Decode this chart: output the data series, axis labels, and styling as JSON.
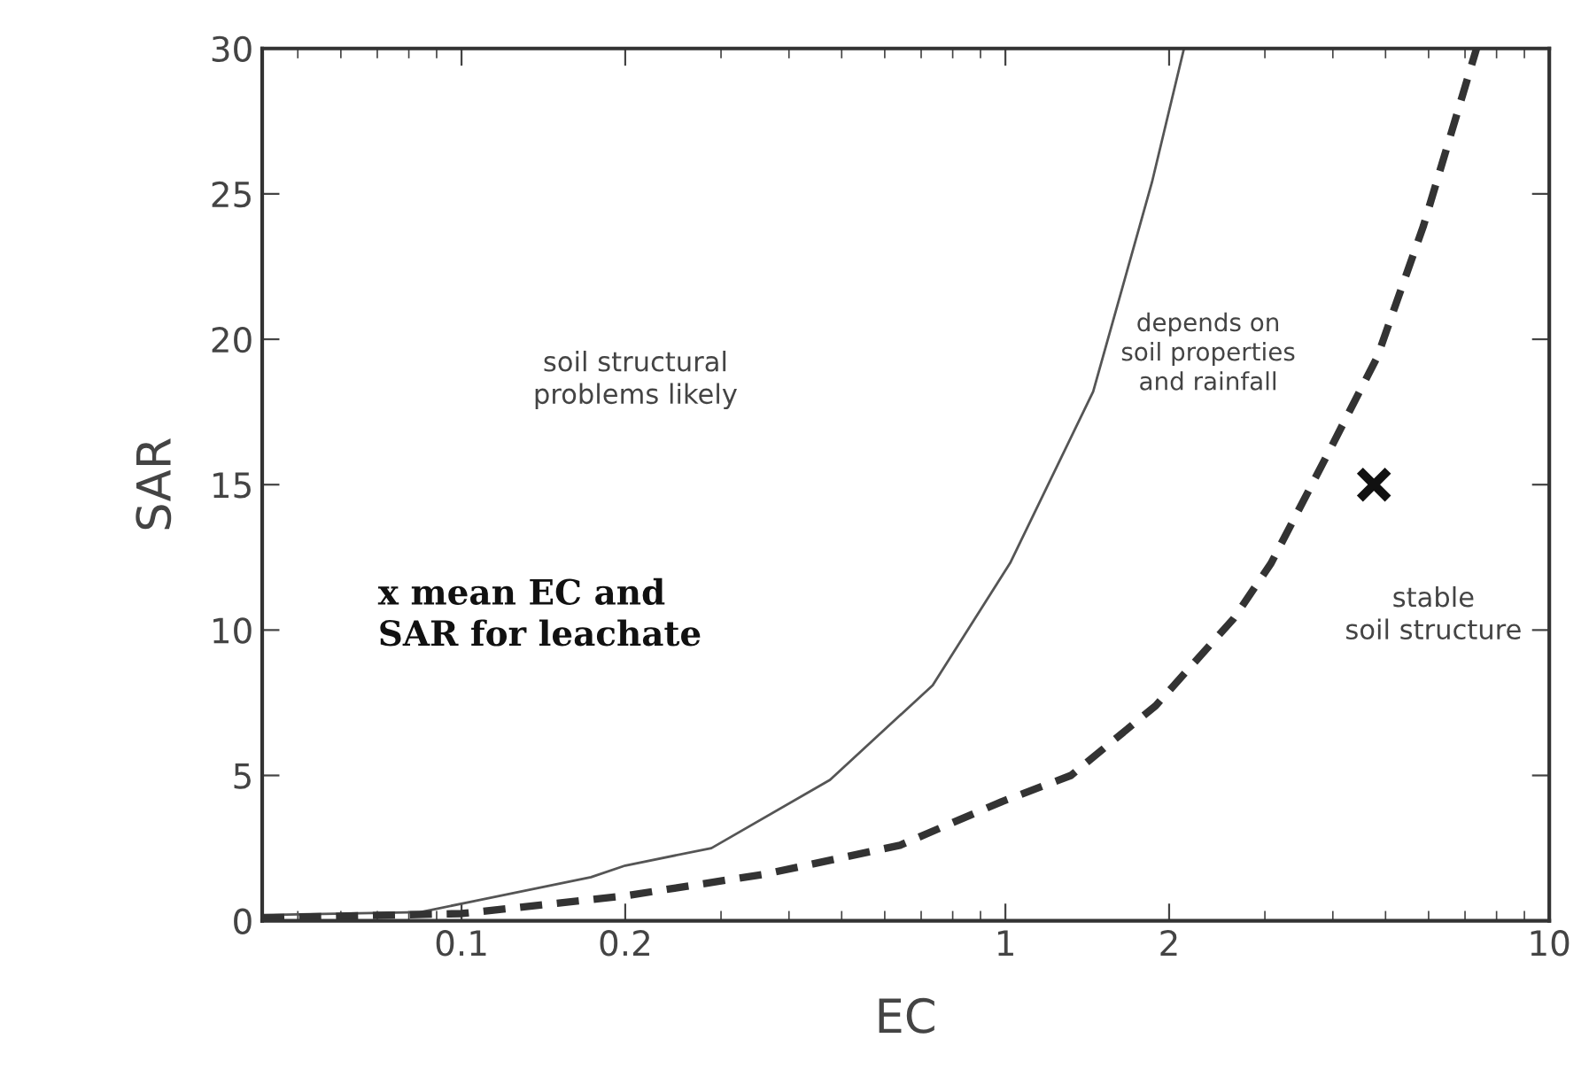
{
  "chart_data": {
    "type": "line",
    "xlabel": "EC",
    "ylabel": "SAR",
    "log": "x",
    "xlim": [
      0.043,
      10
    ],
    "ylim": [
      0,
      30
    ],
    "xticks": [
      0.1,
      0.2,
      1,
      2,
      10
    ],
    "yticks": [
      0,
      5,
      10,
      15,
      20,
      25,
      30
    ],
    "grid": false,
    "legend": false,
    "marker": "none",
    "series": [
      {
        "color": "#555555",
        "line_style": "solid",
        "x": [
          0.043,
          0.084,
          0.173,
          0.2,
          0.288,
          0.476,
          0.735,
          1.02,
          1.45,
          1.86,
          2.13
        ],
        "values": [
          0.2,
          0.3,
          1.5,
          1.9,
          2.5,
          4.85,
          8.1,
          12.3,
          18.2,
          25.4,
          30
        ]
      },
      {
        "color": "#333333",
        "line_style": "dashed",
        "x": [
          0.043,
          0.1,
          0.2,
          0.36,
          0.64,
          0.985,
          1.32,
          1.89,
          2.63,
          3.08,
          3.95,
          4.83,
          5.87,
          7.35
        ],
        "values": [
          0.1,
          0.25,
          0.86,
          1.6,
          2.6,
          4.1,
          5.0,
          7.4,
          10.4,
          12.3,
          16.2,
          19.4,
          23.9,
          30
        ]
      },
      {
        "type": "scatter",
        "color": "#111111",
        "marker": "cross",
        "x": [
          4.76
        ],
        "values": [
          15
        ]
      }
    ],
    "annotations": [
      "soil structural\nproblems likely",
      "depends on\nsoil properties\nand rainfall",
      "stable\nsoil structure",
      "x mean EC and\nSAR for leachate"
    ]
  }
}
